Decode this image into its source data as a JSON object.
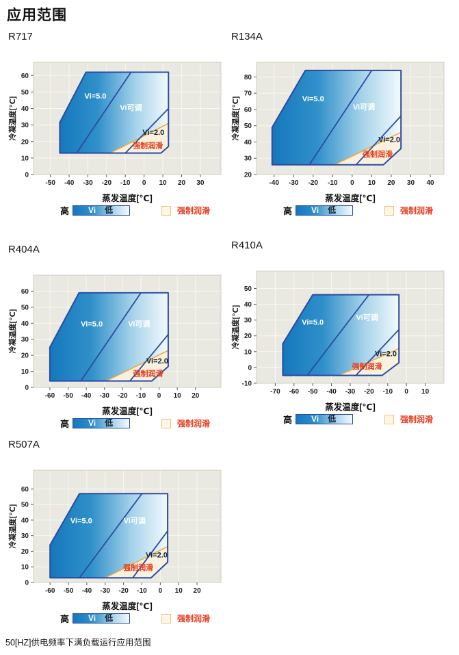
{
  "page": {
    "title": "应用范围",
    "footnote": "50[HZ]供电频率下满负载运行应用范围"
  },
  "legend": {
    "high": "高",
    "bar_label": "Vi",
    "low": "低",
    "forced": "强制润滑"
  },
  "colors": {
    "plot_bg": "#eae9e1",
    "grid": "#f7f7f2",
    "plot_border": "#cfcdc1",
    "envelope_border": "#2b4aa2",
    "fill_stops": [
      "#1478bc",
      "#3090ca",
      "#a6d3ea",
      "#f3fafd"
    ],
    "forced_line": "#f2a63a",
    "forced_fill": "#f8f1de",
    "forced_text": "#e63c1e",
    "tick": "#555555"
  },
  "chart_data": [
    {
      "type": "area",
      "title": "R717",
      "xlabel": "蒸发温度[℃]",
      "ylabel": "冷凝温度[℃]",
      "x_ticks": [
        -50,
        -40,
        -30,
        -20,
        -10,
        0,
        10,
        20,
        30
      ],
      "y_ticks": [
        0,
        10,
        20,
        30,
        40,
        50,
        60
      ],
      "xlim": [
        -59,
        41
      ],
      "ylim": [
        0,
        68
      ],
      "regions": {
        "envelope": [
          [
            -45,
            13
          ],
          [
            -45,
            31.5
          ],
          [
            -31,
            62
          ],
          [
            13,
            62
          ],
          [
            13,
            17
          ],
          [
            9,
            13
          ]
        ],
        "vi50_boundary": [
          [
            -36,
            13
          ],
          [
            -7,
            62
          ]
        ],
        "vi20_boundary": [
          [
            13,
            40
          ],
          [
            -10,
            13
          ]
        ],
        "forced_lube_boundary": [
          [
            -18,
            13
          ],
          [
            13,
            31
          ]
        ],
        "forced_lube_region": [
          [
            -18,
            13
          ],
          [
            13,
            31
          ],
          [
            13,
            17
          ],
          [
            9,
            13
          ]
        ]
      },
      "labels": [
        {
          "text": "Vi=5.0",
          "x": -26,
          "y": 46,
          "color": "#ffffff"
        },
        {
          "text": "Vi可调",
          "x": -7,
          "y": 39,
          "color": "#ffffff"
        },
        {
          "text": "Vi=2.0",
          "x": 5,
          "y": 24,
          "color": "#16222e"
        },
        {
          "text": "强制润滑",
          "x": 2,
          "y": 16,
          "color": "#e63c1e"
        }
      ]
    },
    {
      "type": "area",
      "title": "R134A",
      "xlabel": "蒸发温度[℃]",
      "ylabel": "冷凝温度[℃]",
      "x_ticks": [
        -40,
        -30,
        -20,
        -10,
        0,
        10,
        20,
        30,
        40
      ],
      "y_ticks": [
        20,
        30,
        40,
        50,
        60,
        70,
        80
      ],
      "xlim": [
        -49,
        47
      ],
      "ylim": [
        20,
        89
      ],
      "regions": {
        "envelope": [
          [
            -41,
            26
          ],
          [
            -41,
            49
          ],
          [
            -24,
            84
          ],
          [
            25,
            84
          ],
          [
            25,
            36
          ],
          [
            16,
            26
          ]
        ],
        "vi50_boundary": [
          [
            -22,
            26
          ],
          [
            10,
            84
          ]
        ],
        "vi20_boundary": [
          [
            25,
            56
          ],
          [
            2,
            26
          ]
        ],
        "forced_lube_boundary": [
          [
            -9,
            26
          ],
          [
            25,
            46
          ]
        ],
        "forced_lube_region": [
          [
            -9,
            26
          ],
          [
            25,
            46
          ],
          [
            25,
            36
          ],
          [
            16,
            26
          ]
        ]
      },
      "labels": [
        {
          "text": "Vi=5.0",
          "x": -20,
          "y": 65,
          "color": "#ffffff"
        },
        {
          "text": "Vi可调",
          "x": 6,
          "y": 60,
          "color": "#ffffff"
        },
        {
          "text": "Vi=2.0",
          "x": 19,
          "y": 40,
          "color": "#16222e"
        },
        {
          "text": "强制润滑",
          "x": 13,
          "y": 31,
          "color": "#e63c1e"
        }
      ]
    },
    {
      "type": "area",
      "title": "R404A",
      "xlabel": "蒸发温度[℃]",
      "ylabel": "冷凝温度[℃]",
      "x_ticks": [
        -60,
        -50,
        -40,
        -30,
        -20,
        -10,
        0,
        10,
        20
      ],
      "y_ticks": [
        0,
        10,
        20,
        30,
        40,
        50,
        60
      ],
      "xlim": [
        -69,
        34
      ],
      "ylim": [
        0,
        70
      ],
      "regions": {
        "envelope": [
          [
            -60,
            4
          ],
          [
            -60,
            25
          ],
          [
            -44,
            59
          ],
          [
            5,
            59
          ],
          [
            5,
            13
          ],
          [
            -4,
            4
          ]
        ],
        "vi50_boundary": [
          [
            -43,
            4
          ],
          [
            -10,
            59
          ]
        ],
        "vi20_boundary": [
          [
            5,
            33
          ],
          [
            -16,
            4
          ]
        ],
        "forced_lube_boundary": [
          [
            -29,
            4
          ],
          [
            5,
            23
          ]
        ],
        "forced_lube_region": [
          [
            -29,
            4
          ],
          [
            5,
            23
          ],
          [
            5,
            13
          ],
          [
            -4,
            4
          ]
        ]
      },
      "labels": [
        {
          "text": "Vi=5.0",
          "x": -37,
          "y": 38,
          "color": "#ffffff"
        },
        {
          "text": "Vi可调",
          "x": -11,
          "y": 38,
          "color": "#ffffff"
        },
        {
          "text": "Vi=2.0",
          "x": -1,
          "y": 15,
          "color": "#16222e"
        },
        {
          "text": "强制润滑",
          "x": -6,
          "y": 7,
          "color": "#e63c1e"
        }
      ]
    },
    {
      "type": "area",
      "title": "R410A",
      "xlabel": "蒸发温度[℃]",
      "ylabel": "冷凝温度[℃]",
      "x_ticks": [
        -70,
        -60,
        -50,
        -40,
        -30,
        -20,
        -10,
        0,
        10
      ],
      "y_ticks": [
        -10,
        0,
        10,
        20,
        30,
        40,
        50
      ],
      "xlim": [
        -80,
        20
      ],
      "ylim": [
        -10,
        61
      ],
      "regions": {
        "envelope": [
          [
            -66,
            -5
          ],
          [
            -66,
            15
          ],
          [
            -50,
            46
          ],
          [
            -4,
            46
          ],
          [
            -4,
            3
          ],
          [
            -13,
            -5
          ]
        ],
        "vi50_boundary": [
          [
            -53,
            -5
          ],
          [
            -20,
            46
          ]
        ],
        "vi20_boundary": [
          [
            -4,
            24
          ],
          [
            -27,
            -5
          ]
        ],
        "forced_lube_boundary": [
          [
            -36,
            -5
          ],
          [
            -4,
            12
          ]
        ],
        "forced_lube_region": [
          [
            -36,
            -5
          ],
          [
            -4,
            12
          ],
          [
            -4,
            3
          ],
          [
            -13,
            -5
          ]
        ]
      },
      "labels": [
        {
          "text": "Vi=5.0",
          "x": -50,
          "y": 27,
          "color": "#ffffff"
        },
        {
          "text": "Vi可调",
          "x": -21,
          "y": 30,
          "color": "#ffffff"
        },
        {
          "text": "Vi=2.0",
          "x": -11,
          "y": 7,
          "color": "#16222e"
        },
        {
          "text": "强制润滑",
          "x": -21,
          "y": -1,
          "color": "#e63c1e"
        }
      ]
    },
    {
      "type": "area",
      "title": "R507A",
      "xlabel": "蒸发温度[℃]",
      "ylabel": "冷凝温度[℃]",
      "x_ticks": [
        -60,
        -50,
        -40,
        -30,
        -20,
        -10,
        0,
        10,
        20
      ],
      "y_ticks": [
        0,
        10,
        20,
        30,
        40,
        50,
        60
      ],
      "xlim": [
        -69,
        33
      ],
      "ylim": [
        0,
        72
      ],
      "regions": {
        "envelope": [
          [
            -60,
            3
          ],
          [
            -60,
            24
          ],
          [
            -44,
            57
          ],
          [
            4,
            57
          ],
          [
            4,
            13
          ],
          [
            -5,
            3
          ]
        ],
        "vi50_boundary": [
          [
            -44,
            3
          ],
          [
            -10,
            57
          ]
        ],
        "vi20_boundary": [
          [
            4,
            33
          ],
          [
            -15,
            3
          ]
        ],
        "forced_lube_boundary": [
          [
            -30,
            3
          ],
          [
            4,
            23
          ]
        ],
        "forced_lube_region": [
          [
            -30,
            3
          ],
          [
            4,
            23
          ],
          [
            4,
            13
          ],
          [
            -5,
            3
          ]
        ]
      },
      "labels": [
        {
          "text": "Vi=5.0",
          "x": -43,
          "y": 38,
          "color": "#ffffff"
        },
        {
          "text": "Vi可调",
          "x": -14,
          "y": 38,
          "color": "#ffffff"
        },
        {
          "text": "Vi=2.0",
          "x": -2,
          "y": 16,
          "color": "#16222e"
        },
        {
          "text": "强制润滑",
          "x": -12,
          "y": 8,
          "color": "#e63c1e"
        }
      ]
    }
  ]
}
